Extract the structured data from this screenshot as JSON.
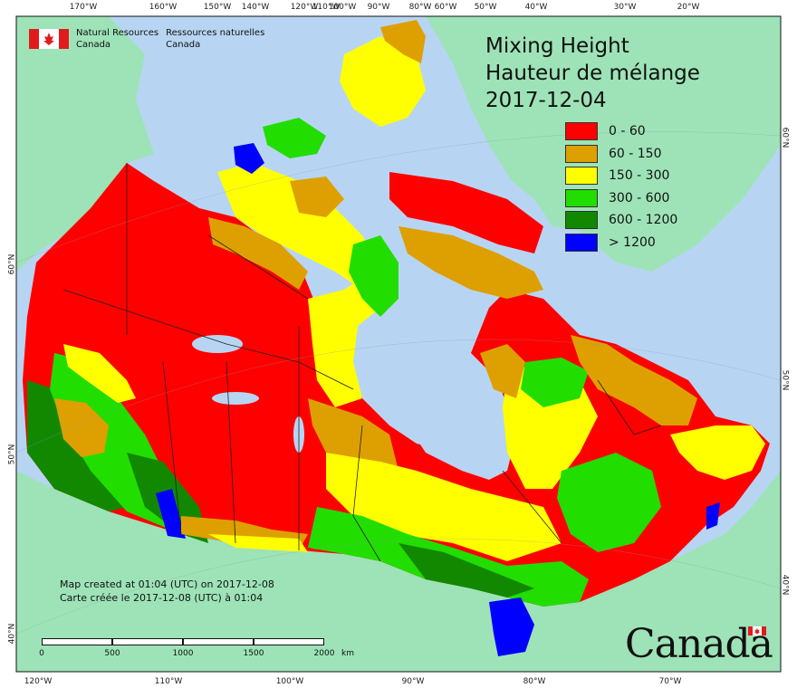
{
  "header": {
    "agency_en_line1": "Natural Resources",
    "agency_en_line2": "Canada",
    "agency_fr_line1": "Ressources naturelles",
    "agency_fr_line2": "Canada"
  },
  "title": {
    "line1": "Mixing Height",
    "line2": "Hauteur de mélange",
    "date": "2017-12-04"
  },
  "legend": [
    {
      "label": "0 - 60",
      "color": "#ff0000"
    },
    {
      "label": "60 - 150",
      "color": "#dda000"
    },
    {
      "label": "150 - 300",
      "color": "#ffff00"
    },
    {
      "label": "300 - 600",
      "color": "#22dd00"
    },
    {
      "label": "600 - 1200",
      "color": "#118800"
    },
    {
      "label": "> 1200",
      "color": "#0000ff"
    }
  ],
  "credits": {
    "line_en": "Map created at 01:04 (UTC) on 2017-12-08",
    "line_fr": "Carte créée le 2017-12-08 (UTC) à 01:04"
  },
  "scalebar": {
    "labels": [
      "0",
      "500",
      "1000",
      "1500",
      "2000"
    ],
    "unit": "km"
  },
  "graticule": {
    "top_labels": [
      "170°W",
      "160°W",
      "150°W",
      "140°W",
      "120°W",
      "110°W",
      "100°W",
      "90°W",
      "80°W",
      "60°W",
      "50°W",
      "40°W",
      "30°W",
      "20°W"
    ],
    "bottom_labels": [
      "120°W",
      "110°W",
      "100°W",
      "90°W",
      "80°W",
      "70°W"
    ],
    "left_labels": [
      "60°N",
      "50°N",
      "40°N"
    ],
    "right_labels": [
      "60°N",
      "50°N",
      "40°N"
    ]
  },
  "wordmark": "Canada",
  "colors": {
    "ocean": "#b7d5f2",
    "foreign_land": "#9de3b7",
    "border": "#222222",
    "flag_red": "#e31a1c"
  }
}
